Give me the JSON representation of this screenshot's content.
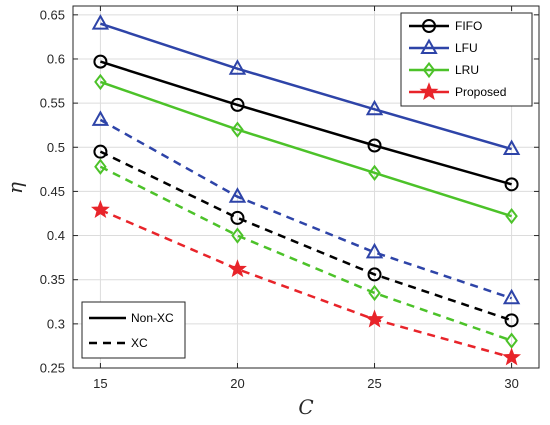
{
  "chart_data": {
    "type": "line",
    "title": "",
    "xlabel": "C",
    "ylabel": "η",
    "xlim": [
      14,
      31
    ],
    "ylim": [
      0.25,
      0.66
    ],
    "xticks": [
      15,
      20,
      25,
      30
    ],
    "yticks": [
      0.25,
      0.3,
      0.35,
      0.4,
      0.45,
      0.5,
      0.55,
      0.6,
      0.65
    ],
    "grid": true,
    "legend_policy": {
      "placement": "top-right",
      "entries": [
        {
          "name": "FIFO",
          "color": "#000000",
          "marker": "circle"
        },
        {
          "name": "LFU",
          "color": "#2e44a8",
          "marker": "triangle"
        },
        {
          "name": "LRU",
          "color": "#4cc229",
          "marker": "diamond"
        },
        {
          "name": "Proposed",
          "color": "#e8242a",
          "marker": "star"
        }
      ]
    },
    "legend_style": {
      "placement": "bottom-left",
      "entries": [
        {
          "name": "Non-XC",
          "dash": "solid"
        },
        {
          "name": "XC",
          "dash": "dashed"
        }
      ]
    },
    "series": [
      {
        "policy": "FIFO",
        "style": "Non-XC",
        "color": "#000000",
        "marker": "circle",
        "dash": "solid",
        "x": [
          15,
          20,
          25,
          30
        ],
        "values": [
          0.597,
          0.548,
          0.502,
          0.458
        ]
      },
      {
        "policy": "LFU",
        "style": "Non-XC",
        "color": "#2e44a8",
        "marker": "triangle",
        "dash": "solid",
        "x": [
          15,
          20,
          25,
          30
        ],
        "values": [
          0.64,
          0.589,
          0.543,
          0.498
        ]
      },
      {
        "policy": "LRU",
        "style": "Non-XC",
        "color": "#4cc229",
        "marker": "diamond",
        "dash": "solid",
        "x": [
          15,
          20,
          25,
          30
        ],
        "values": [
          0.574,
          0.52,
          0.471,
          0.422
        ]
      },
      {
        "policy": "FIFO",
        "style": "XC",
        "color": "#000000",
        "marker": "circle",
        "dash": "dashed",
        "x": [
          15,
          20,
          25,
          30
        ],
        "values": [
          0.495,
          0.42,
          0.356,
          0.304
        ]
      },
      {
        "policy": "LFU",
        "style": "XC",
        "color": "#2e44a8",
        "marker": "triangle",
        "dash": "dashed",
        "x": [
          15,
          20,
          25,
          30
        ],
        "values": [
          0.531,
          0.444,
          0.381,
          0.329
        ]
      },
      {
        "policy": "LRU",
        "style": "XC",
        "color": "#4cc229",
        "marker": "diamond",
        "dash": "dashed",
        "x": [
          15,
          20,
          25,
          30
        ],
        "values": [
          0.478,
          0.4,
          0.335,
          0.281
        ]
      },
      {
        "policy": "Proposed",
        "style": "XC",
        "color": "#e8242a",
        "marker": "star",
        "dash": "dashed",
        "x": [
          15,
          20,
          25,
          30
        ],
        "values": [
          0.429,
          0.362,
          0.305,
          0.262
        ]
      }
    ]
  }
}
